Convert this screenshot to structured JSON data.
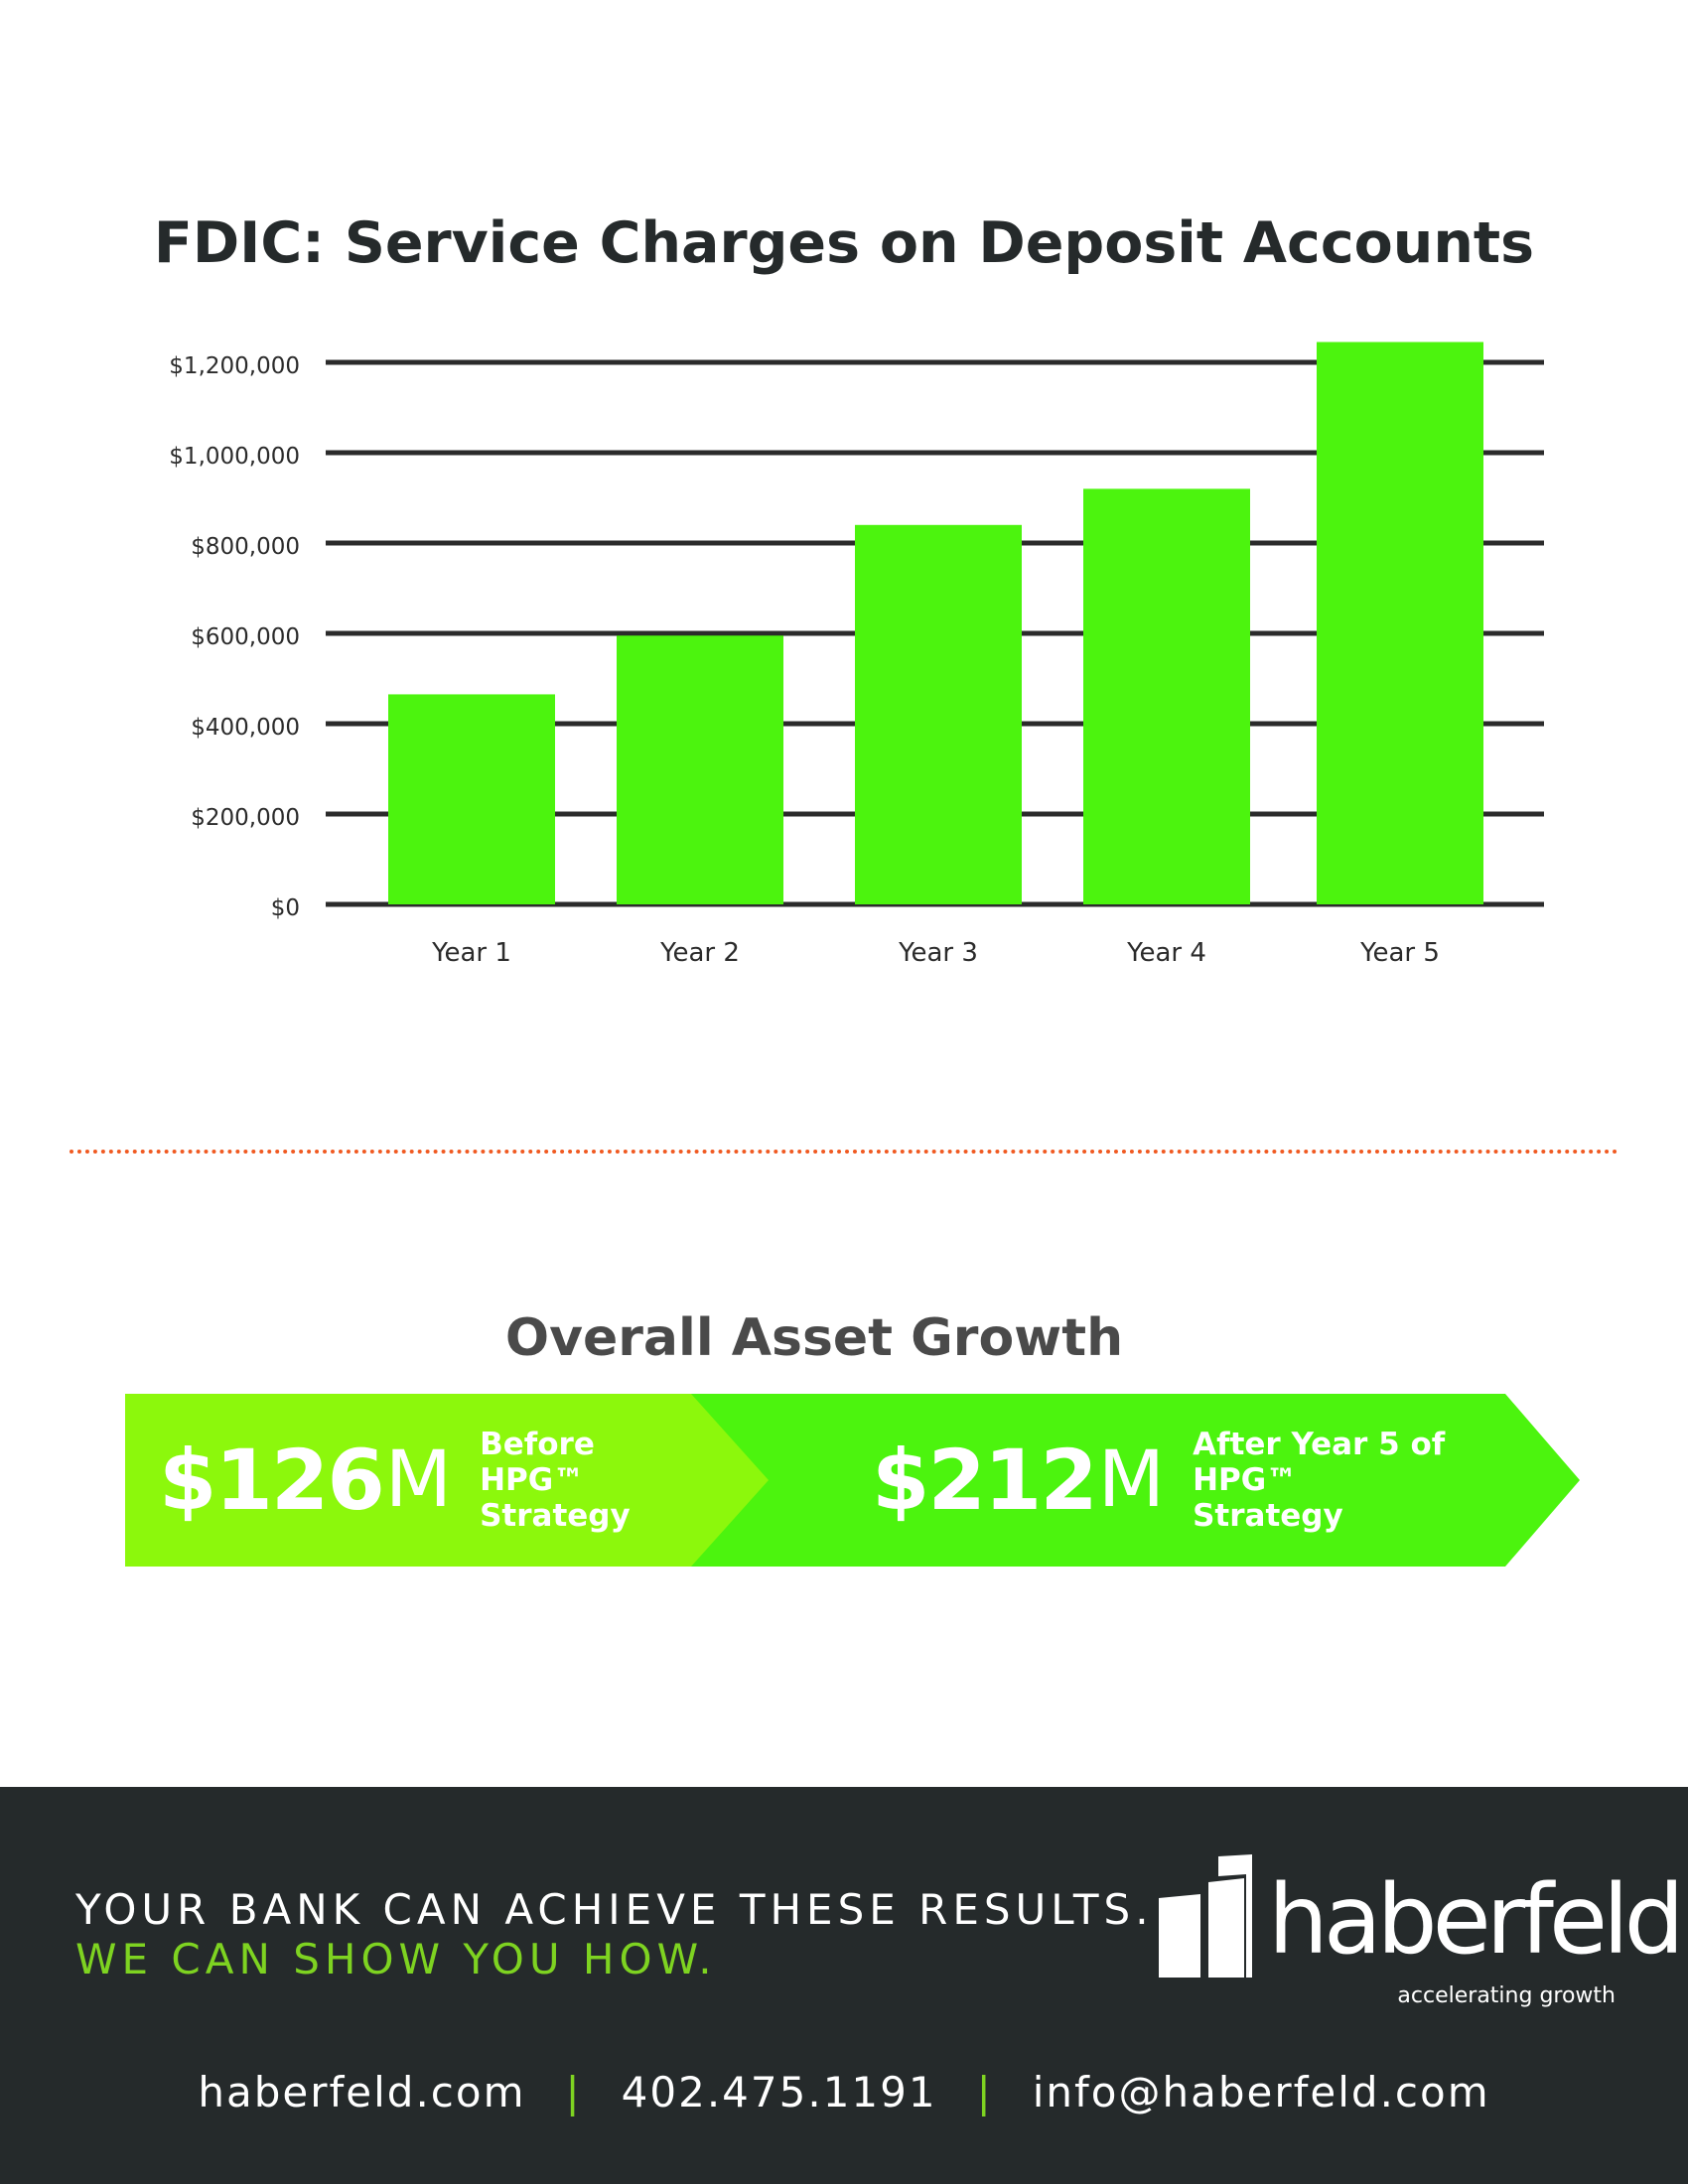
{
  "chart_data": {
    "type": "bar",
    "title": "FDIC: Service Charges on Deposit Accounts",
    "categories": [
      "Year 1",
      "Year 2",
      "Year 3",
      "Year 4",
      "Year 5"
    ],
    "values": [
      465000,
      595000,
      840000,
      920000,
      1245000
    ],
    "xlabel": "",
    "ylabel": "",
    "ylim": [
      0,
      1200000
    ],
    "yticks": [
      0,
      200000,
      400000,
      600000,
      800000,
      1000000,
      1200000
    ],
    "ytick_labels": [
      "$0",
      "$200,000",
      "$400,000",
      "$600,000",
      "$800,000",
      "$1,000,000",
      "$1,200,000"
    ],
    "grid": true,
    "legend": "none",
    "colors": {
      "bar": "#4cf40e",
      "grid": "#2b2b2b",
      "tick_label": "#2b2b2b"
    }
  },
  "asset_growth": {
    "title": "Overall Asset Growth",
    "before": {
      "value": "$126",
      "unit": "M",
      "line1": "Before HPG™",
      "line2": "Strategy",
      "color": "#8cf80c"
    },
    "after": {
      "value": "$212",
      "unit": "M",
      "line1": "After Year 5 of",
      "line2": "HPG™ Strategy",
      "color": "#4cf40e"
    }
  },
  "footer": {
    "tagline_1": "YOUR BANK CAN ACHIEVE THESE RESULTS.",
    "tagline_2": "WE CAN SHOW YOU HOW.",
    "logo_text": "haberfeld",
    "logo_subtext": "accelerating growth",
    "website": "haberfeld.com",
    "phone": "402.475.1191",
    "email": "info@haberfeld.com",
    "separator": "|",
    "colors": {
      "background": "#252a2b",
      "accent": "#7ed321"
    }
  },
  "separator_color": "#f05a22"
}
